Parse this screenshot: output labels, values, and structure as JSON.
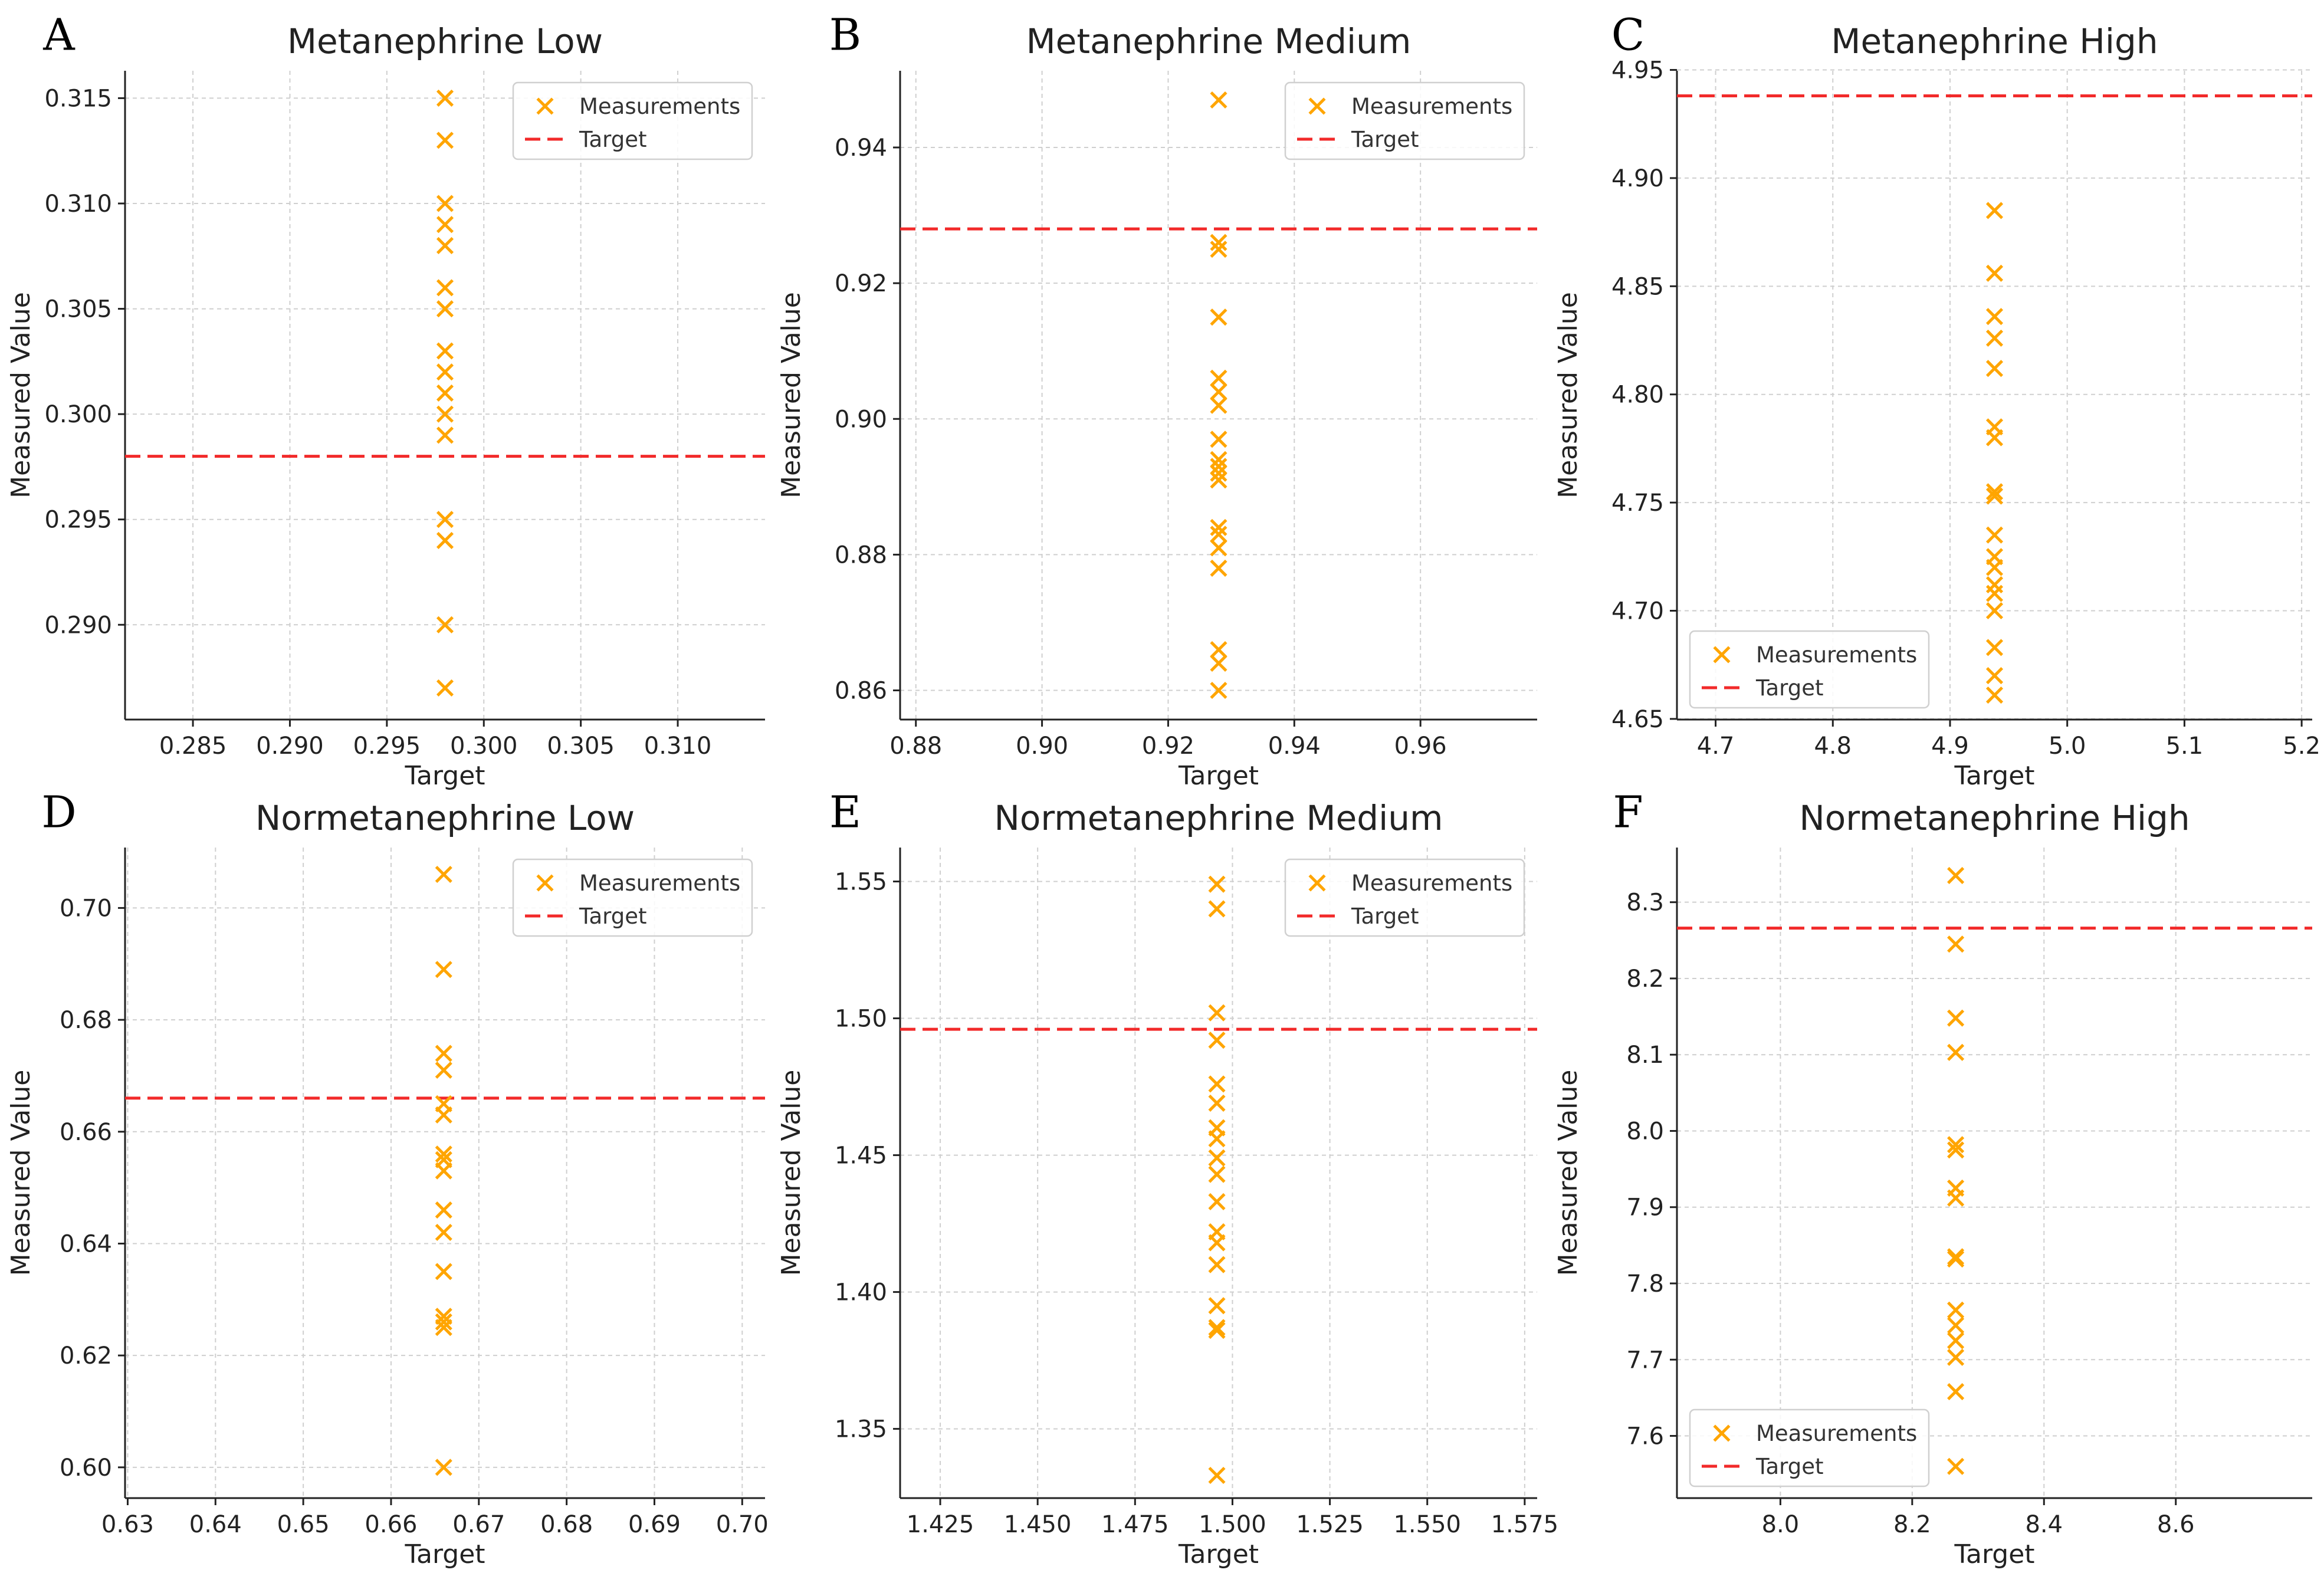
{
  "colors": {
    "marker": "#FFA500",
    "target": "#F22A2A",
    "grid": "#cfcfcf"
  },
  "chart_data": [
    {
      "panel": "A",
      "type": "scatter",
      "title": "Metanephrine Low",
      "xlabel": "Target",
      "ylabel": "Measured Value",
      "target": 0.298,
      "xlim": [
        0.2815,
        0.3145
      ],
      "ylim": [
        0.2855,
        0.3163
      ],
      "xticks": [
        0.285,
        0.29,
        0.295,
        0.3,
        0.305,
        0.31
      ],
      "xtick_labels": [
        "0.285",
        "0.290",
        "0.295",
        "0.300",
        "0.305",
        "0.310"
      ],
      "yticks": [
        0.29,
        0.295,
        0.3,
        0.305,
        0.31,
        0.315
      ],
      "ytick_labels": [
        "0.290",
        "0.295",
        "0.300",
        "0.305",
        "0.310",
        "0.315"
      ],
      "measurements": [
        0.315,
        0.313,
        0.31,
        0.309,
        0.308,
        0.306,
        0.305,
        0.303,
        0.302,
        0.301,
        0.3,
        0.299,
        0.295,
        0.294,
        0.29,
        0.287
      ],
      "legend": {
        "location": "upper right",
        "entries": [
          "Measurements",
          "Target"
        ]
      }
    },
    {
      "panel": "B",
      "type": "scatter",
      "title": "Metanephrine Medium",
      "xlabel": "Target",
      "ylabel": "Measured Value",
      "target": 0.928,
      "xlim": [
        0.8775,
        0.9785
      ],
      "ylim": [
        0.8557,
        0.9513
      ],
      "xticks": [
        0.88,
        0.9,
        0.92,
        0.94,
        0.96
      ],
      "xtick_labels": [
        "0.88",
        "0.90",
        "0.92",
        "0.94",
        "0.96"
      ],
      "yticks": [
        0.86,
        0.88,
        0.9,
        0.92,
        0.94
      ],
      "ytick_labels": [
        "0.86",
        "0.88",
        "0.90",
        "0.92",
        "0.94"
      ],
      "measurements": [
        0.947,
        0.926,
        0.925,
        0.915,
        0.906,
        0.904,
        0.902,
        0.897,
        0.894,
        0.893,
        0.892,
        0.891,
        0.884,
        0.883,
        0.881,
        0.878,
        0.866,
        0.864,
        0.86
      ],
      "legend": {
        "location": "upper right",
        "entries": [
          "Measurements",
          "Target"
        ]
      }
    },
    {
      "panel": "C",
      "type": "scatter",
      "title": "Metanephrine High",
      "xlabel": "Target",
      "ylabel": "Measured Value",
      "target": 4.938,
      "xlim": [
        4.667,
        5.209
      ],
      "ylim": [
        4.6497,
        4.9496
      ],
      "xticks": [
        4.7,
        4.8,
        4.9,
        5.0,
        5.1,
        5.2
      ],
      "xtick_labels": [
        "4.7",
        "4.8",
        "4.9",
        "5.0",
        "5.1",
        "5.2"
      ],
      "yticks": [
        4.65,
        4.7,
        4.75,
        4.8,
        4.85,
        4.9,
        4.95
      ],
      "ytick_labels": [
        "4.65",
        "4.70",
        "4.75",
        "4.80",
        "4.85",
        "4.90",
        "4.95"
      ],
      "measurements": [
        4.885,
        4.856,
        4.836,
        4.826,
        4.812,
        4.785,
        4.78,
        4.755,
        4.753,
        4.735,
        4.725,
        4.72,
        4.712,
        4.708,
        4.7,
        4.683,
        4.67,
        4.661
      ],
      "legend": {
        "location": "lower left",
        "entries": [
          "Measurements",
          "Target"
        ]
      }
    },
    {
      "panel": "D",
      "type": "scatter",
      "title": "Normetanephrine Low",
      "xlabel": "Target",
      "ylabel": "Measured Value",
      "target": 0.666,
      "xlim": [
        0.6297,
        0.7026
      ],
      "ylim": [
        0.5945,
        0.7108
      ],
      "xticks": [
        0.63,
        0.64,
        0.65,
        0.66,
        0.67,
        0.68,
        0.69,
        0.7
      ],
      "xtick_labels": [
        "0.63",
        "0.64",
        "0.65",
        "0.66",
        "0.67",
        "0.68",
        "0.69",
        "0.70"
      ],
      "yticks": [
        0.6,
        0.62,
        0.64,
        0.66,
        0.68,
        0.7
      ],
      "ytick_labels": [
        "0.60",
        "0.62",
        "0.64",
        "0.66",
        "0.68",
        "0.70"
      ],
      "measurements": [
        0.706,
        0.689,
        0.674,
        0.671,
        0.665,
        0.663,
        0.656,
        0.655,
        0.653,
        0.646,
        0.642,
        0.635,
        0.627,
        0.626,
        0.625,
        0.6
      ],
      "legend": {
        "location": "upper right",
        "entries": [
          "Measurements",
          "Target"
        ]
      }
    },
    {
      "panel": "E",
      "type": "scatter",
      "title": "Normetanephrine Medium",
      "xlabel": "Target",
      "ylabel": "Measured Value",
      "target": 1.496,
      "xlim": [
        1.4147,
        1.5782
      ],
      "ylim": [
        1.3247,
        1.5624
      ],
      "xticks": [
        1.425,
        1.45,
        1.475,
        1.5,
        1.525,
        1.55,
        1.575
      ],
      "xtick_labels": [
        "1.425",
        "1.450",
        "1.475",
        "1.500",
        "1.525",
        "1.550",
        "1.575"
      ],
      "yticks": [
        1.35,
        1.4,
        1.45,
        1.5,
        1.55
      ],
      "ytick_labels": [
        "1.35",
        "1.40",
        "1.45",
        "1.50",
        "1.55"
      ],
      "measurements": [
        1.549,
        1.54,
        1.502,
        1.492,
        1.476,
        1.469,
        1.46,
        1.456,
        1.449,
        1.443,
        1.433,
        1.422,
        1.418,
        1.41,
        1.395,
        1.387,
        1.386,
        1.333
      ],
      "legend": {
        "location": "upper right",
        "entries": [
          "Measurements",
          "Target"
        ]
      }
    },
    {
      "panel": "F",
      "type": "scatter",
      "title": "Normetanephrine High",
      "xlabel": "Target",
      "ylabel": "Measured Value",
      "target": 8.266,
      "xlim": [
        7.843,
        8.807
      ],
      "ylim": [
        7.5184,
        8.3717
      ],
      "xticks": [
        8.0,
        8.2,
        8.4,
        8.6
      ],
      "xtick_labels": [
        "8.0",
        "8.2",
        "8.4",
        "8.6"
      ],
      "yticks": [
        7.6,
        7.7,
        7.8,
        7.9,
        8.0,
        8.1,
        8.2,
        8.3
      ],
      "ytick_labels": [
        "7.6",
        "7.7",
        "7.8",
        "7.9",
        "8.0",
        "8.1",
        "8.2",
        "8.3"
      ],
      "measurements": [
        8.335,
        8.245,
        8.148,
        8.103,
        7.982,
        7.975,
        7.925,
        7.912,
        7.835,
        7.832,
        7.765,
        7.745,
        7.725,
        7.703,
        7.658,
        7.56
      ],
      "legend": {
        "location": "lower left",
        "entries": [
          "Measurements",
          "Target"
        ]
      }
    }
  ]
}
